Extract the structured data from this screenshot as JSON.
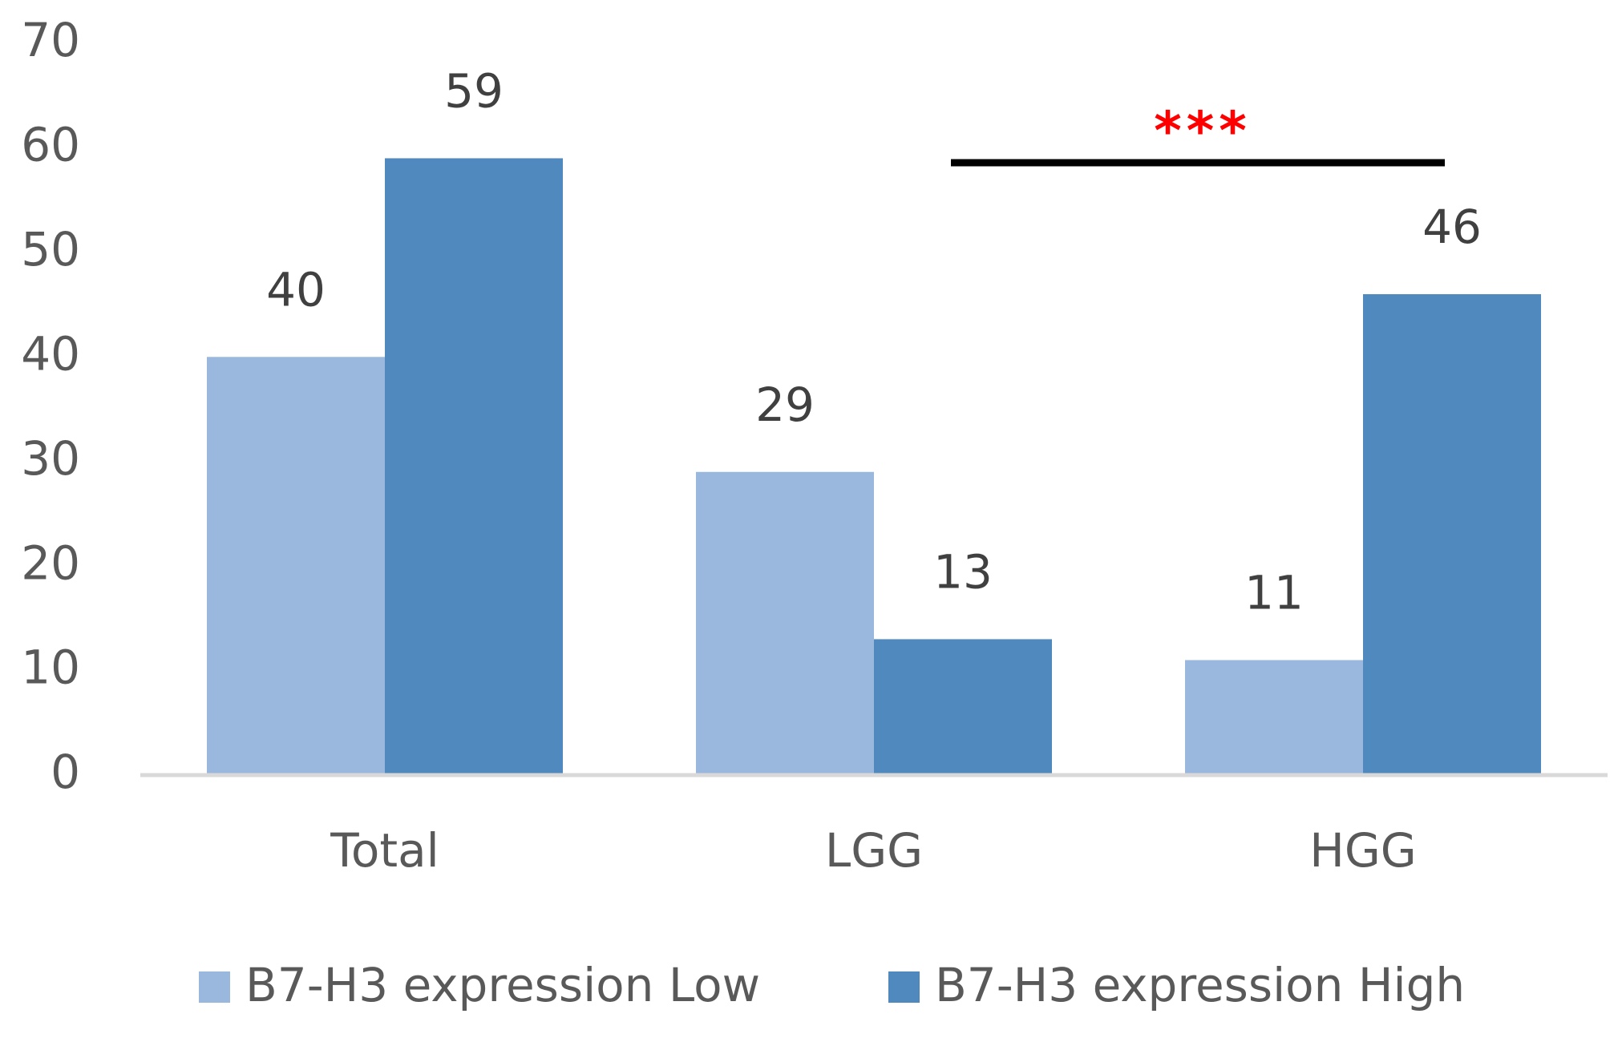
{
  "chart_data": {
    "type": "bar",
    "categories": [
      "Total",
      "LGG",
      "HGG"
    ],
    "series": [
      {
        "name": "B7-H3 expression Low",
        "color": "#9ab8de",
        "values": [
          40,
          29,
          11
        ]
      },
      {
        "name": "B7-H3 expression High",
        "color": "#4f89bd",
        "values": [
          59,
          13,
          46
        ]
      }
    ],
    "ylim": [
      0,
      70
    ],
    "yticks": [
      0,
      10,
      20,
      30,
      40,
      50,
      60,
      70
    ],
    "grid": false,
    "legend": "bottom",
    "annotations": [
      {
        "text": "***",
        "color": "#ff0000"
      }
    ]
  }
}
